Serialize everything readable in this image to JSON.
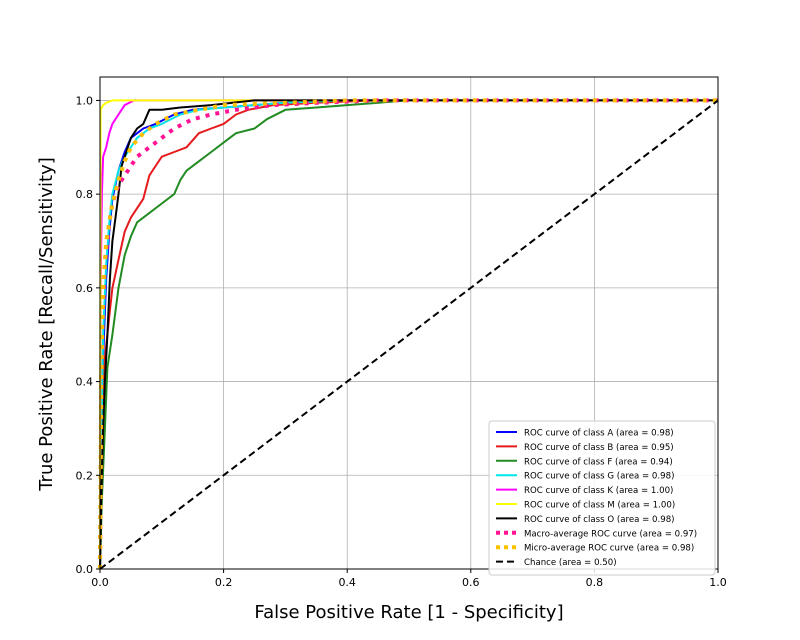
{
  "chart_data": {
    "type": "line",
    "title": "",
    "xlabel": "False Positive Rate  [1 - Specificity]",
    "ylabel": "True Positive Rate [Recall/Sensitivity]",
    "xlim": [
      0.0,
      1.0
    ],
    "ylim": [
      0.0,
      1.05
    ],
    "grid": true,
    "legend_position": "lower-right",
    "x_ticks": [
      "0.0",
      "0.2",
      "0.4",
      "0.6",
      "0.8",
      "1.0"
    ],
    "y_ticks": [
      "0.0",
      "0.2",
      "0.4",
      "0.6",
      "0.8",
      "1.0"
    ],
    "series": [
      {
        "name": "ROC curve of class A (area = 0.98)",
        "color": "#0000ff",
        "style": "solid",
        "points": [
          [
            0,
            0
          ],
          [
            0.002,
            0.2
          ],
          [
            0.005,
            0.45
          ],
          [
            0.01,
            0.62
          ],
          [
            0.015,
            0.72
          ],
          [
            0.02,
            0.79
          ],
          [
            0.03,
            0.85
          ],
          [
            0.04,
            0.89
          ],
          [
            0.05,
            0.92
          ],
          [
            0.07,
            0.94
          ],
          [
            0.09,
            0.95
          ],
          [
            0.12,
            0.97
          ],
          [
            0.15,
            0.98
          ],
          [
            0.2,
            0.985
          ],
          [
            0.25,
            0.99
          ],
          [
            0.3,
            0.995
          ],
          [
            0.4,
            1.0
          ],
          [
            1.0,
            1.0
          ]
        ]
      },
      {
        "name": "ROC curve of class B (area = 0.95)",
        "color": "#e41a1c",
        "style": "solid",
        "points": [
          [
            0,
            0
          ],
          [
            0.003,
            0.3
          ],
          [
            0.008,
            0.45
          ],
          [
            0.015,
            0.54
          ],
          [
            0.02,
            0.6
          ],
          [
            0.03,
            0.66
          ],
          [
            0.04,
            0.72
          ],
          [
            0.05,
            0.75
          ],
          [
            0.06,
            0.77
          ],
          [
            0.07,
            0.79
          ],
          [
            0.08,
            0.84
          ],
          [
            0.09,
            0.86
          ],
          [
            0.1,
            0.88
          ],
          [
            0.12,
            0.89
          ],
          [
            0.14,
            0.9
          ],
          [
            0.16,
            0.93
          ],
          [
            0.18,
            0.94
          ],
          [
            0.2,
            0.95
          ],
          [
            0.22,
            0.97
          ],
          [
            0.24,
            0.98
          ],
          [
            0.28,
            0.99
          ],
          [
            0.35,
            0.995
          ],
          [
            0.45,
            1.0
          ],
          [
            1.0,
            1.0
          ]
        ]
      },
      {
        "name": "ROC curve of class F (area = 0.94)",
        "color": "#228b22",
        "style": "solid",
        "points": [
          [
            0,
            0
          ],
          [
            0.003,
            0.15
          ],
          [
            0.008,
            0.3
          ],
          [
            0.012,
            0.43
          ],
          [
            0.02,
            0.5
          ],
          [
            0.03,
            0.6
          ],
          [
            0.04,
            0.67
          ],
          [
            0.05,
            0.71
          ],
          [
            0.06,
            0.74
          ],
          [
            0.08,
            0.76
          ],
          [
            0.1,
            0.78
          ],
          [
            0.12,
            0.8
          ],
          [
            0.13,
            0.83
          ],
          [
            0.14,
            0.85
          ],
          [
            0.16,
            0.87
          ],
          [
            0.18,
            0.89
          ],
          [
            0.2,
            0.91
          ],
          [
            0.22,
            0.93
          ],
          [
            0.25,
            0.94
          ],
          [
            0.27,
            0.96
          ],
          [
            0.3,
            0.98
          ],
          [
            0.35,
            0.985
          ],
          [
            0.4,
            0.99
          ],
          [
            0.5,
            1.0
          ],
          [
            1.0,
            1.0
          ]
        ]
      },
      {
        "name": "ROC curve of class G (area = 0.98)",
        "color": "#00e5e5",
        "style": "solid",
        "points": [
          [
            0,
            0
          ],
          [
            0.002,
            0.25
          ],
          [
            0.005,
            0.5
          ],
          [
            0.01,
            0.65
          ],
          [
            0.015,
            0.74
          ],
          [
            0.02,
            0.8
          ],
          [
            0.03,
            0.85
          ],
          [
            0.04,
            0.88
          ],
          [
            0.05,
            0.9
          ],
          [
            0.06,
            0.92
          ],
          [
            0.08,
            0.94
          ],
          [
            0.1,
            0.95
          ],
          [
            0.13,
            0.97
          ],
          [
            0.16,
            0.98
          ],
          [
            0.2,
            0.985
          ],
          [
            0.25,
            0.99
          ],
          [
            0.3,
            0.995
          ],
          [
            0.4,
            1.0
          ],
          [
            1.0,
            1.0
          ]
        ]
      },
      {
        "name": "ROC curve of class K (area = 1.00)",
        "color": "#ff00ff",
        "style": "solid",
        "points": [
          [
            0,
            0
          ],
          [
            0.001,
            0.6
          ],
          [
            0.003,
            0.8
          ],
          [
            0.005,
            0.88
          ],
          [
            0.01,
            0.9
          ],
          [
            0.015,
            0.93
          ],
          [
            0.02,
            0.95
          ],
          [
            0.03,
            0.97
          ],
          [
            0.04,
            0.99
          ],
          [
            0.055,
            1.0
          ],
          [
            1.0,
            1.0
          ]
        ]
      },
      {
        "name": "ROC curve of class M (area = 1.00)",
        "color": "#ffff00",
        "style": "solid",
        "points": [
          [
            0,
            0
          ],
          [
            0.001,
            0.98
          ],
          [
            0.005,
            0.99
          ],
          [
            0.01,
            0.995
          ],
          [
            0.02,
            1.0
          ],
          [
            1.0,
            1.0
          ]
        ]
      },
      {
        "name": "ROC curve of class O (area = 0.98)",
        "color": "#000000",
        "style": "solid",
        "points": [
          [
            0,
            0
          ],
          [
            0.002,
            0.15
          ],
          [
            0.005,
            0.3
          ],
          [
            0.008,
            0.4
          ],
          [
            0.012,
            0.5
          ],
          [
            0.016,
            0.62
          ],
          [
            0.02,
            0.7
          ],
          [
            0.025,
            0.75
          ],
          [
            0.03,
            0.8
          ],
          [
            0.035,
            0.86
          ],
          [
            0.04,
            0.88
          ],
          [
            0.05,
            0.92
          ],
          [
            0.06,
            0.94
          ],
          [
            0.07,
            0.95
          ],
          [
            0.08,
            0.98
          ],
          [
            0.1,
            0.98
          ],
          [
            0.13,
            0.985
          ],
          [
            0.18,
            0.99
          ],
          [
            0.25,
            1.0
          ],
          [
            1.0,
            1.0
          ]
        ]
      },
      {
        "name": "Macro-average ROC curve (area = 0.97)",
        "color": "#ff1493",
        "style": "dotted",
        "points": [
          [
            0,
            0
          ],
          [
            0.003,
            0.5
          ],
          [
            0.008,
            0.65
          ],
          [
            0.015,
            0.74
          ],
          [
            0.02,
            0.78
          ],
          [
            0.03,
            0.82
          ],
          [
            0.04,
            0.84
          ],
          [
            0.05,
            0.86
          ],
          [
            0.06,
            0.88
          ],
          [
            0.07,
            0.89
          ],
          [
            0.08,
            0.9
          ],
          [
            0.1,
            0.92
          ],
          [
            0.12,
            0.94
          ],
          [
            0.15,
            0.96
          ],
          [
            0.18,
            0.97
          ],
          [
            0.22,
            0.98
          ],
          [
            0.28,
            0.99
          ],
          [
            0.35,
            0.995
          ],
          [
            0.45,
            1.0
          ],
          [
            1.0,
            1.0
          ]
        ]
      },
      {
        "name": "Micro-average ROC curve (area = 0.98)",
        "color": "#ffc000",
        "style": "dotted",
        "points": [
          [
            0,
            0
          ],
          [
            0.002,
            0.4
          ],
          [
            0.005,
            0.6
          ],
          [
            0.01,
            0.7
          ],
          [
            0.02,
            0.78
          ],
          [
            0.03,
            0.83
          ],
          [
            0.04,
            0.87
          ],
          [
            0.05,
            0.9
          ],
          [
            0.07,
            0.93
          ],
          [
            0.09,
            0.95
          ],
          [
            0.12,
            0.97
          ],
          [
            0.16,
            0.98
          ],
          [
            0.2,
            0.99
          ],
          [
            0.3,
            0.995
          ],
          [
            0.4,
            1.0
          ],
          [
            1.0,
            1.0
          ]
        ]
      },
      {
        "name": "Chance (area = 0.50)",
        "color": "#000000",
        "style": "dashed",
        "points": [
          [
            0,
            0
          ],
          [
            1,
            1
          ]
        ]
      }
    ]
  }
}
